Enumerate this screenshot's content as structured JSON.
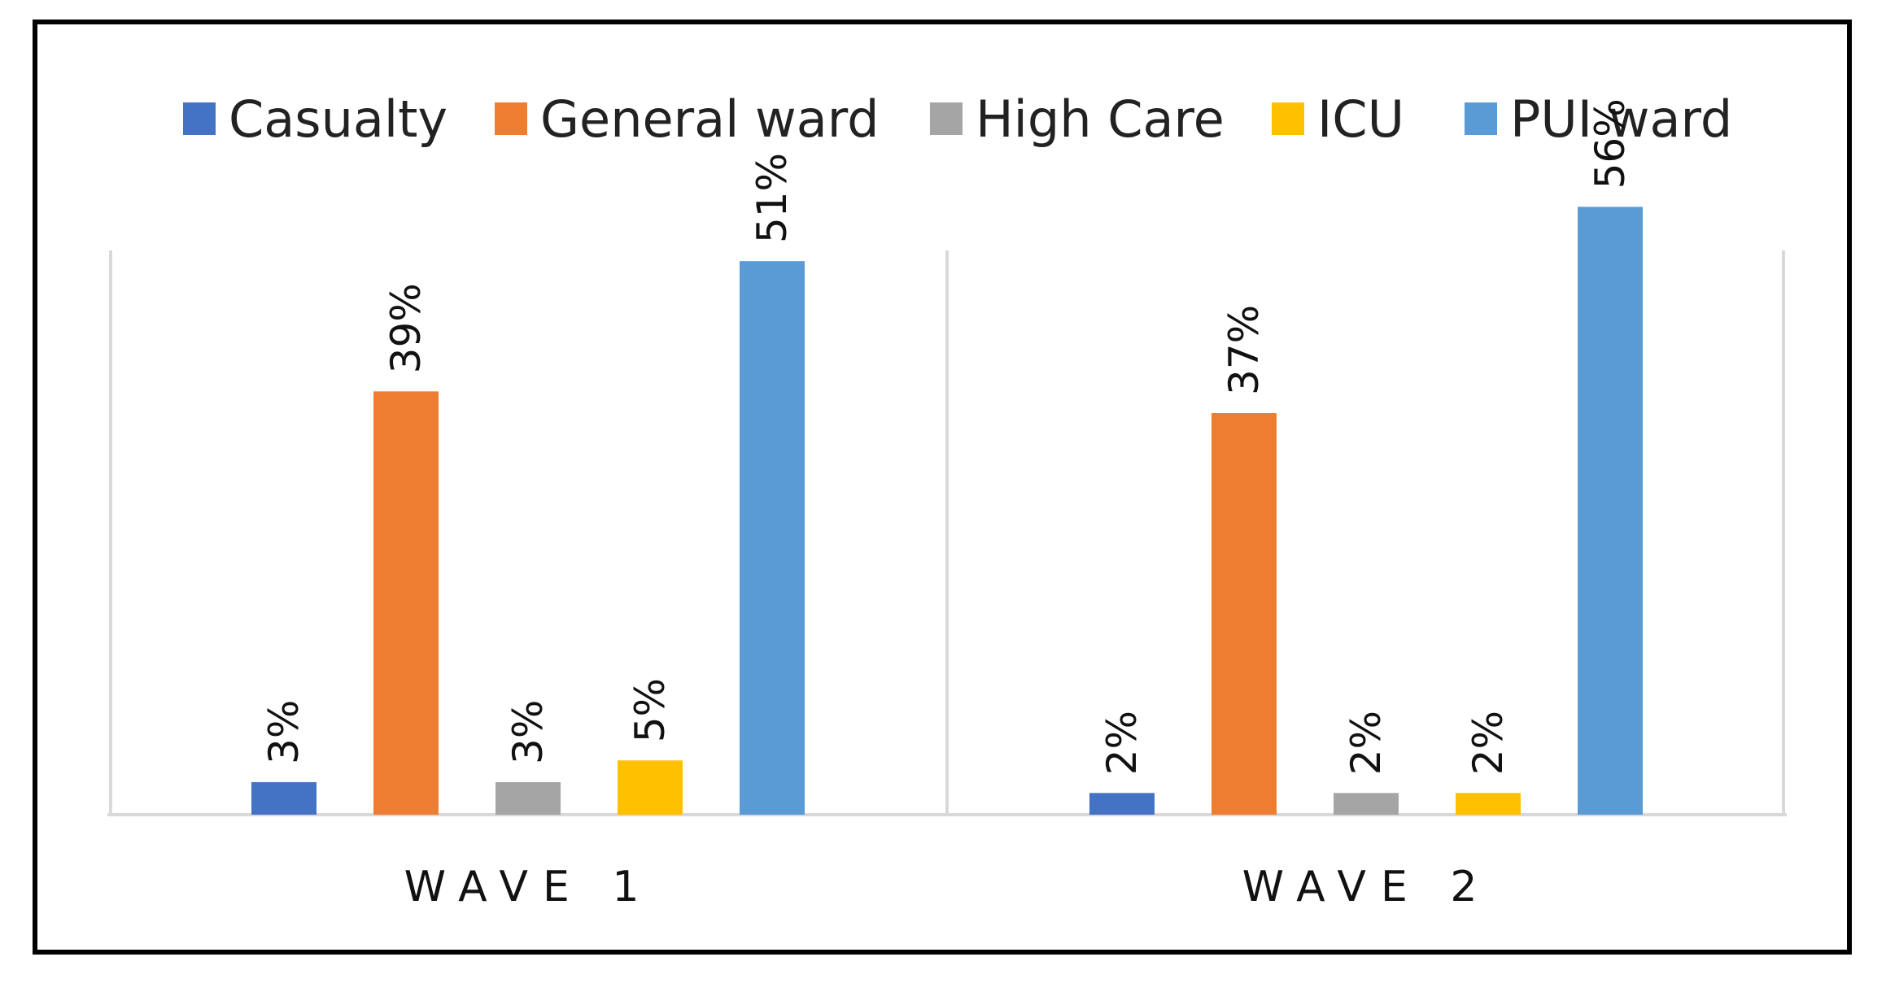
{
  "chart_data": {
    "type": "bar",
    "categories": [
      "WAVE 1",
      "WAVE 2"
    ],
    "series": [
      {
        "name": "Casualty",
        "color": "#4472C4",
        "values": [
          3,
          2
        ],
        "labels": [
          "3%",
          "2%"
        ]
      },
      {
        "name": "General ward",
        "color": "#ED7D31",
        "values": [
          39,
          37
        ],
        "labels": [
          "39%",
          "37%"
        ]
      },
      {
        "name": "High Care",
        "color": "#A5A5A5",
        "values": [
          3,
          2
        ],
        "labels": [
          "3%",
          "2%"
        ]
      },
      {
        "name": "ICU",
        "color": "#FFC000",
        "values": [
          5,
          2
        ],
        "labels": [
          "5%",
          "2%"
        ]
      },
      {
        "name": "PUI ward",
        "color": "#5B9BD5",
        "values": [
          51,
          56
        ],
        "labels": [
          "51%",
          "56%"
        ]
      }
    ],
    "legend_position": "top",
    "grid": false,
    "ylim": [
      0,
      60
    ]
  }
}
